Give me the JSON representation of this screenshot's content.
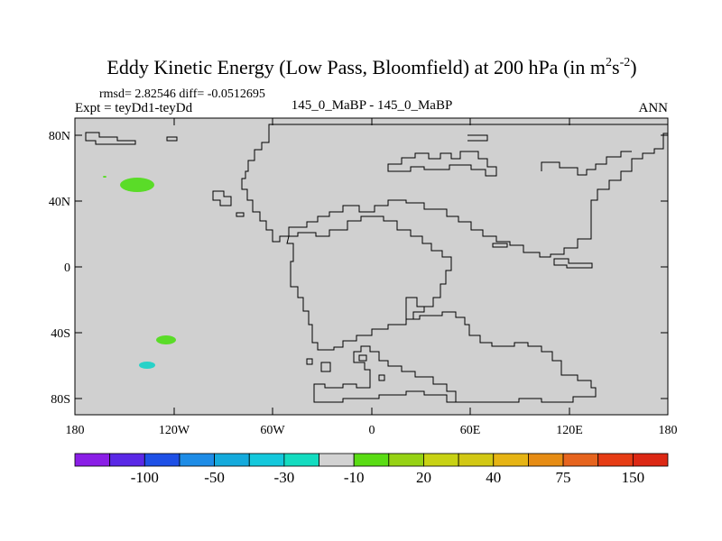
{
  "title": {
    "main": "Eddy Kinetic Energy (Low Pass, Bloomfield) at 200 hPa (in m",
    "sup1": "2",
    "mid": "s",
    "sup2": "-2",
    "end": ")"
  },
  "stats": "rmsd= 2.82546 diff= -0.0512695",
  "expt": "Expt = teyDd1-teyDd",
  "center_label": "145_0_MaBP - 145_0_MaBP",
  "season": "ANN",
  "lat_labels": [
    "80N",
    "40N",
    "0",
    "40S",
    "80S"
  ],
  "lon_labels": [
    "180",
    "120W",
    "60W",
    "0",
    "60E",
    "120E",
    "180"
  ],
  "colorbar": {
    "colors": [
      "#8a1ee6",
      "#5a28e6",
      "#1e50e6",
      "#1e8ce6",
      "#14aadc",
      "#14c8dc",
      "#14dcc0",
      "#d2d2d2",
      "#5adc14",
      "#96d214",
      "#c8d214",
      "#d2c814",
      "#e6b414",
      "#e68c14",
      "#e6641e",
      "#e63c14",
      "#dc2814"
    ],
    "labels": [
      "-100",
      "-50",
      "-30",
      "-10",
      "20",
      "40",
      "75",
      "150"
    ]
  },
  "colors": {
    "land_fill": "#d0d0d0",
    "positive_anom": "#5adc28",
    "negative_anom": "#28d2c8"
  }
}
